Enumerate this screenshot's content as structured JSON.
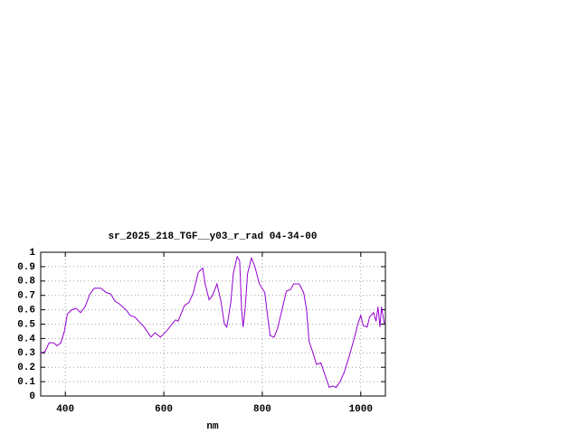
{
  "chart_data": {
    "type": "line",
    "title": "sr_2025_218_TGF__y03_r_rad 04-34-00",
    "x_label": "nm",
    "x": [
      350,
      359,
      367,
      376,
      383,
      391,
      398,
      404,
      413,
      422,
      431,
      440,
      450,
      459,
      472,
      483,
      492,
      501,
      510,
      523,
      532,
      541,
      560,
      574,
      582,
      593,
      605,
      624,
      629,
      642,
      651,
      660,
      670,
      679,
      684,
      692,
      699,
      708,
      716,
      723,
      728,
      736,
      741,
      749,
      754,
      758,
      761,
      765,
      770,
      778,
      785,
      794,
      805,
      811,
      816,
      824,
      831,
      840,
      849,
      857,
      864,
      875,
      884,
      890,
      895,
      903,
      910,
      919,
      927,
      936,
      943,
      950,
      958,
      967,
      976,
      985,
      994,
      1000,
      1005,
      1013,
      1018,
      1026,
      1031,
      1035,
      1039,
      1042,
      1048
    ],
    "values": [
      0.3,
      0.31,
      0.37,
      0.37,
      0.35,
      0.37,
      0.45,
      0.57,
      0.6,
      0.61,
      0.58,
      0.62,
      0.71,
      0.75,
      0.75,
      0.72,
      0.71,
      0.66,
      0.64,
      0.6,
      0.56,
      0.55,
      0.48,
      0.41,
      0.44,
      0.41,
      0.45,
      0.53,
      0.52,
      0.63,
      0.65,
      0.72,
      0.86,
      0.89,
      0.78,
      0.67,
      0.7,
      0.78,
      0.66,
      0.5,
      0.48,
      0.65,
      0.85,
      0.97,
      0.94,
      0.6,
      0.48,
      0.6,
      0.85,
      0.96,
      0.9,
      0.78,
      0.72,
      0.55,
      0.42,
      0.41,
      0.47,
      0.6,
      0.73,
      0.74,
      0.78,
      0.78,
      0.72,
      0.6,
      0.38,
      0.3,
      0.22,
      0.23,
      0.15,
      0.06,
      0.07,
      0.06,
      0.1,
      0.17,
      0.27,
      0.38,
      0.5,
      0.56,
      0.49,
      0.48,
      0.55,
      0.58,
      0.52,
      0.62,
      0.48,
      0.62,
      0.5
    ],
    "color": "#9400d3",
    "xlim": [
      350,
      1050
    ],
    "xticks": [
      400,
      600,
      800,
      1000
    ],
    "ylim": [
      0,
      1
    ],
    "yticks": [
      0,
      0.1,
      0.2,
      0.3,
      0.4,
      0.5,
      0.6,
      0.7,
      0.8,
      0.9,
      1
    ],
    "grid": true
  }
}
